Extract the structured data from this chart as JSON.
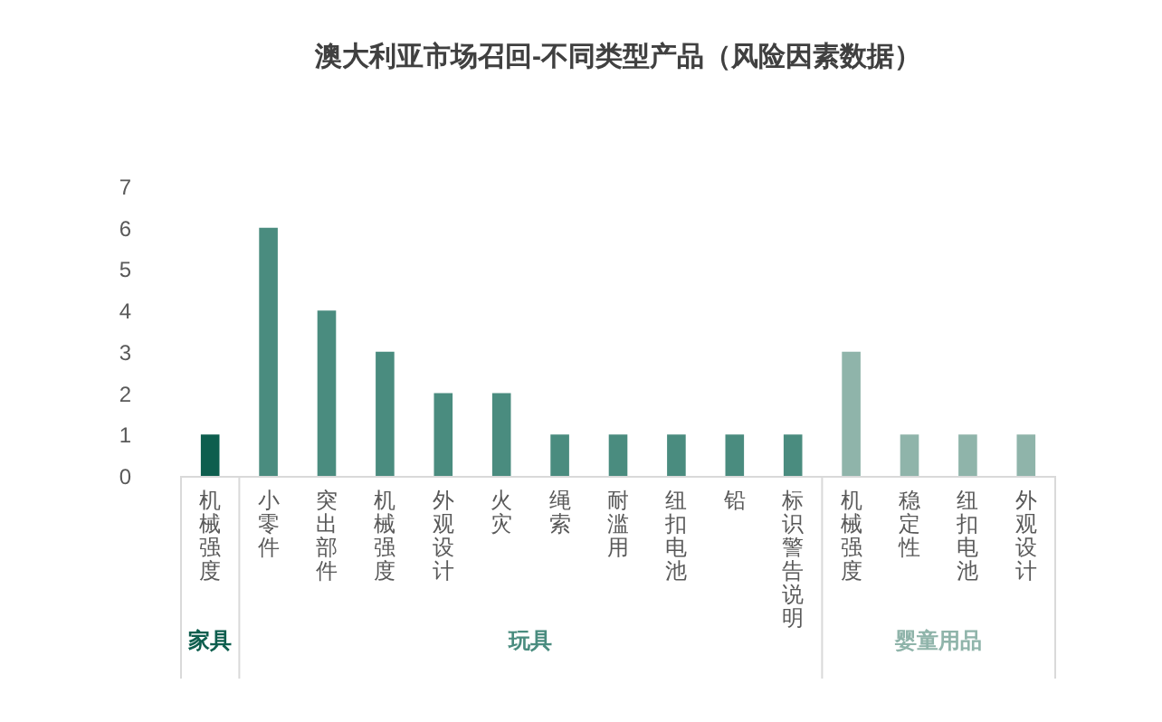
{
  "chart_data": {
    "type": "bar",
    "title": "澳大利亚市场召回-不同类型产品（风险因素数据）",
    "categories": [
      "机械强度",
      "小零件",
      "突出部件",
      "机械强度",
      "外观设计",
      "火灾",
      "绳索",
      "耐滥用",
      "纽扣电池",
      "铅",
      "标识警告说明",
      "机械强度",
      "稳定性",
      "纽扣电池",
      "外观设计"
    ],
    "series": [
      {
        "name": "家具",
        "color": "#0e5e4e",
        "values": [
          1,
          null,
          null,
          null,
          null,
          null,
          null,
          null,
          null,
          null,
          null,
          null,
          null,
          null,
          null
        ]
      },
      {
        "name": "玩具",
        "color": "#4a8c7f",
        "values": [
          null,
          6,
          4,
          3,
          2,
          2,
          1,
          1,
          1,
          1,
          1,
          null,
          null,
          null,
          null
        ]
      },
      {
        "name": "婴童用品",
        "color": "#8fb4aa",
        "values": [
          null,
          null,
          null,
          null,
          null,
          null,
          null,
          null,
          null,
          null,
          null,
          3,
          1,
          1,
          1
        ]
      }
    ],
    "ylim": [
      0,
      7
    ],
    "yticks": [
      0,
      1,
      2,
      3,
      4,
      5,
      6,
      7
    ],
    "grid": false
  }
}
